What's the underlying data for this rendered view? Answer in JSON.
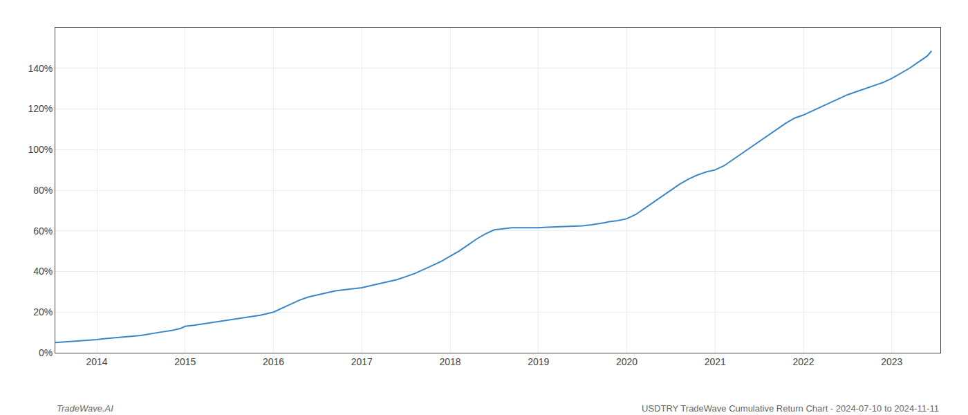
{
  "chart_data": {
    "type": "line",
    "annotations": [
      "TradeWave.AI",
      "USDTRY TradeWave Cumulative Return Chart - 2024-07-10 to 2024-11-11"
    ],
    "color": "#3a87c8",
    "grid": true,
    "x": [
      2013.53,
      2013.7,
      2013.9,
      2014.0,
      2014.1,
      2014.3,
      2014.5,
      2014.7,
      2014.85,
      2014.95,
      2015.0,
      2015.1,
      2015.25,
      2015.4,
      2015.55,
      2015.7,
      2015.85,
      2016.0,
      2016.1,
      2016.2,
      2016.3,
      2016.4,
      2016.5,
      2016.6,
      2016.7,
      2016.8,
      2016.9,
      2017.0,
      2017.1,
      2017.2,
      2017.3,
      2017.4,
      2017.5,
      2017.6,
      2017.7,
      2017.8,
      2017.9,
      2018.0,
      2018.1,
      2018.2,
      2018.3,
      2018.4,
      2018.5,
      2018.6,
      2018.7,
      2018.8,
      2018.9,
      2019.0,
      2019.1,
      2019.2,
      2019.3,
      2019.4,
      2019.5,
      2019.6,
      2019.7,
      2019.75,
      2019.8,
      2019.9,
      2020.0,
      2020.1,
      2020.2,
      2020.3,
      2020.4,
      2020.5,
      2020.6,
      2020.7,
      2020.8,
      2020.9,
      2021.0,
      2021.1,
      2021.2,
      2021.3,
      2021.4,
      2021.5,
      2021.6,
      2021.7,
      2021.8,
      2021.9,
      2022.0,
      2022.1,
      2022.2,
      2022.3,
      2022.4,
      2022.5,
      2022.6,
      2022.7,
      2022.8,
      2022.9,
      2023.0,
      2023.1,
      2023.2,
      2023.3,
      2023.4,
      2023.45
    ],
    "values": [
      5.0,
      5.5,
      6.2,
      6.5,
      7.0,
      7.8,
      8.5,
      10.0,
      11.0,
      12.0,
      13.0,
      13.5,
      14.5,
      15.5,
      16.5,
      17.5,
      18.5,
      20.0,
      22.0,
      24.0,
      26.0,
      27.5,
      28.5,
      29.5,
      30.5,
      31.0,
      31.5,
      32.0,
      33.0,
      34.0,
      35.0,
      36.0,
      37.5,
      39.0,
      41.0,
      43.0,
      45.0,
      47.5,
      50.0,
      53.0,
      56.0,
      58.5,
      60.5,
      61.0,
      61.5,
      61.5,
      61.5,
      61.5,
      61.8,
      62.0,
      62.2,
      62.5,
      62.5,
      63.0,
      63.5,
      64.0,
      64.5,
      65.0,
      66.0,
      68.0,
      71.0,
      74.0,
      77.0,
      80.0,
      83.0,
      85.5,
      87.5,
      89.0,
      90.0,
      92.0,
      95.0,
      98.0,
      101.0,
      104.0,
      107.0,
      110.0,
      113.0,
      115.5,
      117.0,
      119.0,
      121.0,
      123.0,
      125.0,
      127.0,
      128.5,
      130.0,
      131.5,
      133.0,
      135.0,
      137.5,
      140.0,
      143.0,
      146.0,
      148.5
    ],
    "xlim": [
      2013.53,
      2023.55
    ],
    "xticks": [
      2014,
      2015,
      2016,
      2017,
      2018,
      2019,
      2020,
      2021,
      2022,
      2023
    ],
    "ylim": [
      0,
      160
    ],
    "yticks": [
      {
        "value": 0,
        "label": "0%"
      },
      {
        "value": 20,
        "label": "20%"
      },
      {
        "value": 40,
        "label": "40%"
      },
      {
        "value": 60,
        "label": "60%"
      },
      {
        "value": 80,
        "label": "80%"
      },
      {
        "value": 100,
        "label": "100%"
      },
      {
        "value": 120,
        "label": "120%"
      },
      {
        "value": 140,
        "label": "140%"
      }
    ]
  }
}
